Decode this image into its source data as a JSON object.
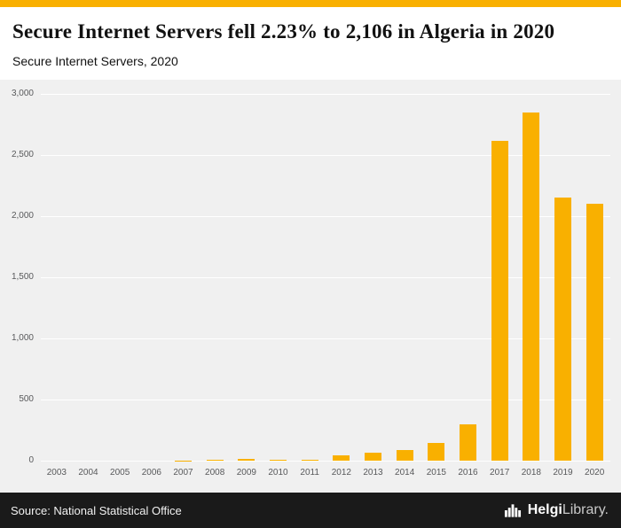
{
  "header": {
    "title": "Secure Internet Servers fell 2.23% to 2,106 in Algeria in 2020",
    "subtitle": "Secure Internet Servers, 2020"
  },
  "footer": {
    "source": "Source: National Statistical Office",
    "logo": {
      "bold": "Helgi",
      "light": "Library."
    }
  },
  "colors": {
    "accent": "#F9B000",
    "bar": "#F9B000",
    "chart_background": "#F0F0F0",
    "gridline": "#FFFFFF",
    "footer_background": "#1A1A1A",
    "header_background": "#FFFFFF"
  },
  "chart_data": {
    "type": "bar",
    "title": "Secure Internet Servers, 2020",
    "categories": [
      "2003",
      "2004",
      "2005",
      "2006",
      "2007",
      "2008",
      "2009",
      "2010",
      "2011",
      "2012",
      "2013",
      "2014",
      "2015",
      "2016",
      "2017",
      "2018",
      "2019",
      "2020"
    ],
    "values": [
      0,
      0,
      0,
      0,
      5,
      12,
      14,
      13,
      10,
      45,
      65,
      90,
      145,
      300,
      2620,
      2850,
      2154,
      2106
    ],
    "xlabel": "",
    "ylabel": "",
    "ylim": [
      0,
      3000
    ],
    "yticks": [
      0,
      500,
      1000,
      1500,
      2000,
      2500,
      3000
    ],
    "grid": true,
    "legend": false
  }
}
